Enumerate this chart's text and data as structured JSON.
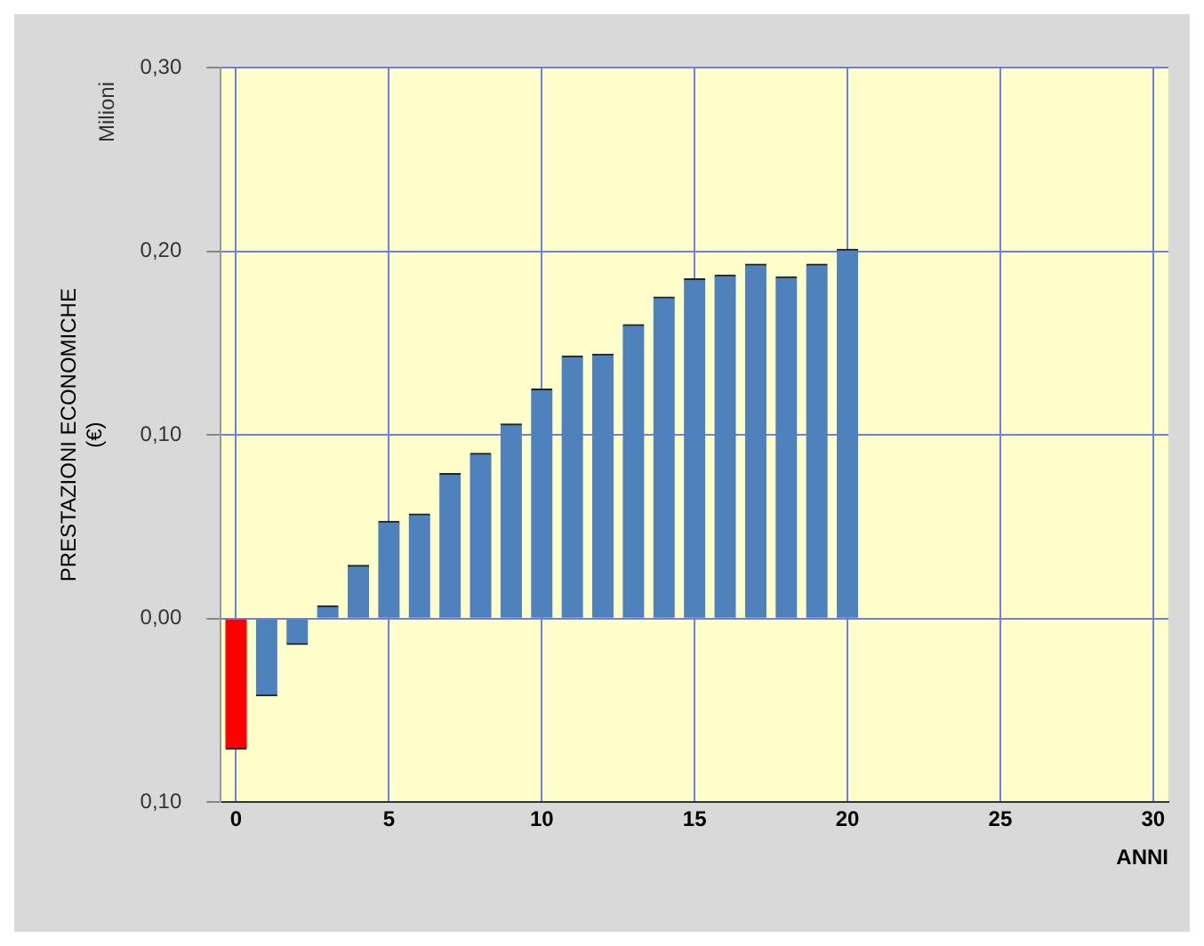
{
  "chart_data": {
    "type": "bar",
    "xlabel": "ANNI",
    "ylabel": "PRESTAZIONI ECONOMICHE\n(€)",
    "annotations": [
      "Milioni"
    ],
    "x": [
      0,
      1,
      2,
      3,
      4,
      5,
      6,
      7,
      8,
      9,
      10,
      11,
      12,
      13,
      14,
      15,
      16,
      17,
      18,
      19,
      20
    ],
    "values": [
      -0.071,
      -0.042,
      -0.014,
      0.007,
      0.029,
      0.053,
      0.057,
      0.079,
      0.09,
      0.106,
      0.125,
      0.143,
      0.144,
      0.16,
      0.175,
      0.185,
      0.187,
      0.193,
      0.186,
      0.193,
      0.201
    ],
    "colors": [
      "#ff0000",
      "#4f81bd",
      "#4f81bd",
      "#4f81bd",
      "#4f81bd",
      "#4f81bd",
      "#4f81bd",
      "#4f81bd",
      "#4f81bd",
      "#4f81bd",
      "#4f81bd",
      "#4f81bd",
      "#4f81bd",
      "#4f81bd",
      "#4f81bd",
      "#4f81bd",
      "#4f81bd",
      "#4f81bd",
      "#4f81bd",
      "#4f81bd",
      "#4f81bd"
    ],
    "xlim": [
      -0.5,
      30.5
    ],
    "xticks": [
      0,
      5,
      10,
      15,
      20,
      25,
      30
    ],
    "ylim": [
      -0.1,
      0.3
    ],
    "yticks": [
      {
        "value": -0.1,
        "label": "0,10"
      },
      {
        "value": 0,
        "label": "0,00"
      },
      {
        "value": 0.1,
        "label": "0,10"
      },
      {
        "value": 0.2,
        "label": "0,20"
      },
      {
        "value": 0.3,
        "label": "0,30"
      }
    ],
    "grid": true,
    "legend": false
  }
}
